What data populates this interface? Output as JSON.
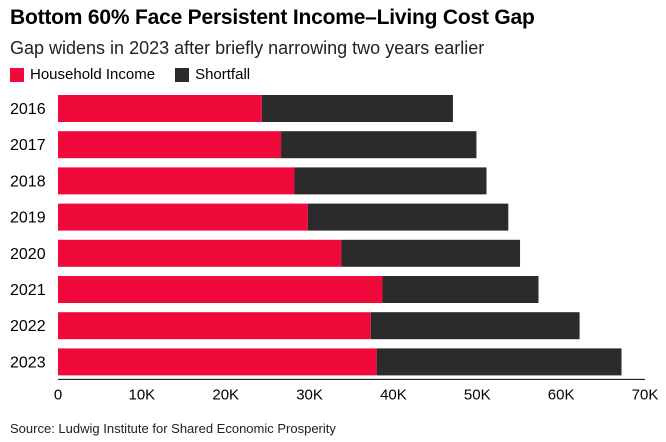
{
  "title": "Bottom 60% Face Persistent Income–Living Cost Gap",
  "subtitle": "Gap widens in 2023 after briefly narrowing two years earlier",
  "source": "Source: Ludwig Institute for Shared Economic Prosperity",
  "colors": {
    "household_income": "#f0093b",
    "shortfall": "#2b2b2b"
  },
  "chart_data": {
    "type": "bar",
    "orientation": "horizontal",
    "stacked": true,
    "categories": [
      "2016",
      "2017",
      "2018",
      "2019",
      "2020",
      "2021",
      "2022",
      "2023"
    ],
    "series": [
      {
        "name": "Household Income",
        "values": [
          24300,
          26600,
          28200,
          29800,
          33800,
          38700,
          37300,
          38000
        ]
      },
      {
        "name": "Shortfall",
        "values": [
          22800,
          23300,
          22900,
          23900,
          21300,
          18600,
          24900,
          29200
        ]
      }
    ],
    "xlim": [
      0,
      70000
    ],
    "x_ticks": [
      0,
      10000,
      20000,
      30000,
      40000,
      50000,
      60000,
      70000
    ],
    "x_tick_labels": [
      "0",
      "10K",
      "20K",
      "30K",
      "40K",
      "50K",
      "60K",
      "70K"
    ],
    "legend_position": "top-left",
    "grid": false
  }
}
